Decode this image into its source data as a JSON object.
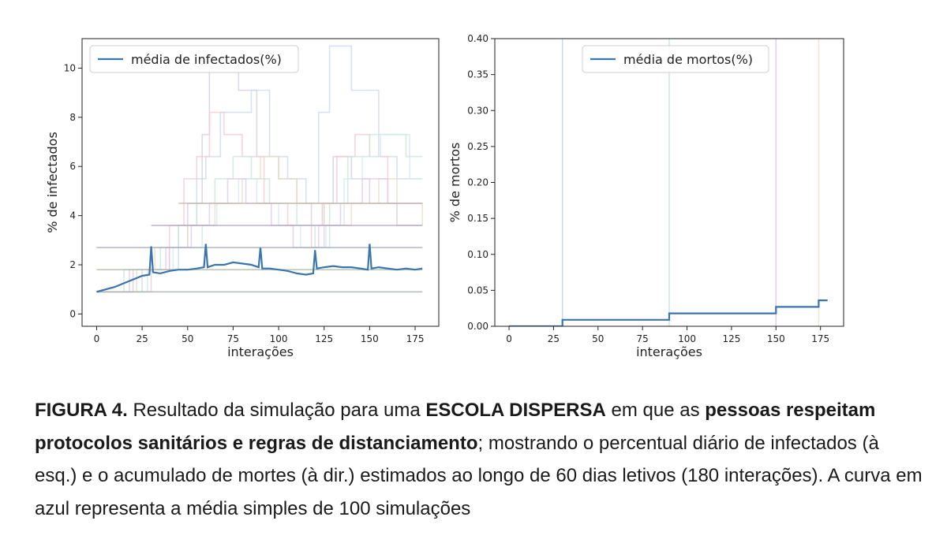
{
  "chart_data": [
    {
      "type": "line",
      "xlabel": "interações",
      "ylabel": "% de infectados",
      "xlim": [
        -8,
        188
      ],
      "ylim": [
        -0.5,
        11.2
      ],
      "xticks": [
        0,
        25,
        50,
        75,
        100,
        125,
        150,
        175
      ],
      "yticks": [
        0,
        2,
        4,
        6,
        8,
        10
      ],
      "legend": {
        "label": "média de infectados(%)",
        "position": "top-left"
      },
      "grid": false,
      "mean_series": {
        "name": "média de infectados(%)",
        "color": "#3a75b0",
        "points": [
          [
            0,
            0.9
          ],
          [
            5,
            1.0
          ],
          [
            10,
            1.1
          ],
          [
            15,
            1.25
          ],
          [
            20,
            1.4
          ],
          [
            25,
            1.55
          ],
          [
            29,
            1.6
          ],
          [
            30,
            2.75
          ],
          [
            31,
            1.7
          ],
          [
            35,
            1.65
          ],
          [
            40,
            1.75
          ],
          [
            45,
            1.8
          ],
          [
            50,
            1.8
          ],
          [
            55,
            1.85
          ],
          [
            59,
            1.9
          ],
          [
            60,
            2.85
          ],
          [
            61,
            1.9
          ],
          [
            65,
            2.0
          ],
          [
            70,
            2.0
          ],
          [
            75,
            2.1
          ],
          [
            80,
            2.05
          ],
          [
            85,
            2.0
          ],
          [
            89,
            1.9
          ],
          [
            90,
            2.7
          ],
          [
            91,
            1.85
          ],
          [
            95,
            1.85
          ],
          [
            100,
            1.8
          ],
          [
            105,
            1.75
          ],
          [
            110,
            1.65
          ],
          [
            115,
            1.6
          ],
          [
            119,
            1.65
          ],
          [
            120,
            2.6
          ],
          [
            121,
            1.85
          ],
          [
            125,
            1.9
          ],
          [
            130,
            1.95
          ],
          [
            135,
            1.9
          ],
          [
            140,
            1.9
          ],
          [
            145,
            1.85
          ],
          [
            149,
            1.8
          ],
          [
            150,
            2.85
          ],
          [
            151,
            1.85
          ],
          [
            155,
            1.9
          ],
          [
            160,
            1.85
          ],
          [
            165,
            1.8
          ],
          [
            170,
            1.85
          ],
          [
            175,
            1.8
          ],
          [
            179,
            1.85
          ]
        ]
      },
      "background_series": [
        {
          "color": "#d6c8e0",
          "points": [
            [
              0,
              0.9
            ],
            [
              20,
              1.8
            ],
            [
              40,
              2.7
            ],
            [
              50,
              4.5
            ],
            [
              58,
              7.3
            ],
            [
              62,
              10.0
            ],
            [
              70,
              10.0
            ],
            [
              78,
              9.1
            ],
            [
              88,
              6.4
            ],
            [
              100,
              5.5
            ],
            [
              110,
              4.5
            ],
            [
              118,
              3.6
            ],
            [
              124,
              4.5
            ],
            [
              130,
              6.4
            ],
            [
              140,
              5.5
            ],
            [
              150,
              4.5
            ],
            [
              165,
              3.6
            ],
            [
              179,
              3.6
            ]
          ]
        },
        {
          "color": "#c8d8ea",
          "points": [
            [
              0,
              0.9
            ],
            [
              25,
              1.8
            ],
            [
              45,
              3.6
            ],
            [
              55,
              5.5
            ],
            [
              60,
              6.4
            ],
            [
              68,
              8.2
            ],
            [
              75,
              8.2
            ],
            [
              85,
              9.1
            ],
            [
              95,
              6.4
            ],
            [
              105,
              5.5
            ],
            [
              115,
              4.5
            ],
            [
              122,
              8.2
            ],
            [
              128,
              10.9
            ],
            [
              132,
              10.9
            ],
            [
              140,
              9.1
            ],
            [
              148,
              9.1
            ],
            [
              155,
              6.4
            ],
            [
              165,
              5.5
            ],
            [
              179,
              5.5
            ]
          ]
        },
        {
          "color": "#f1c8d4",
          "points": [
            [
              0,
              0.9
            ],
            [
              30,
              1.8
            ],
            [
              40,
              3.6
            ],
            [
              48,
              5.5
            ],
            [
              55,
              6.4
            ],
            [
              62,
              8.2
            ],
            [
              70,
              7.3
            ],
            [
              80,
              6.4
            ],
            [
              92,
              4.5
            ],
            [
              105,
              3.6
            ],
            [
              118,
              2.7
            ],
            [
              125,
              4.5
            ],
            [
              132,
              6.4
            ],
            [
              142,
              7.3
            ],
            [
              150,
              6.4
            ],
            [
              160,
              4.5
            ],
            [
              179,
              4.5
            ]
          ]
        },
        {
          "color": "#c8e6d4",
          "points": [
            [
              0,
              0.9
            ],
            [
              15,
              1.8
            ],
            [
              35,
              2.7
            ],
            [
              45,
              3.6
            ],
            [
              55,
              4.5
            ],
            [
              65,
              5.5
            ],
            [
              75,
              6.4
            ],
            [
              85,
              5.5
            ],
            [
              95,
              4.5
            ],
            [
              110,
              3.6
            ],
            [
              120,
              2.7
            ],
            [
              128,
              4.5
            ],
            [
              138,
              6.4
            ],
            [
              150,
              7.3
            ],
            [
              160,
              7.3
            ],
            [
              170,
              6.4
            ],
            [
              179,
              6.4
            ]
          ]
        },
        {
          "color": "#e6dcc0",
          "points": [
            [
              0,
              0.9
            ],
            [
              22,
              1.8
            ],
            [
              32,
              2.7
            ],
            [
              50,
              3.6
            ],
            [
              65,
              4.5
            ],
            [
              72,
              4.5
            ],
            [
              80,
              5.5
            ],
            [
              90,
              6.4
            ],
            [
              100,
              5.5
            ],
            [
              110,
              4.5
            ],
            [
              125,
              3.6
            ],
            [
              140,
              4.5
            ],
            [
              155,
              5.5
            ],
            [
              165,
              4.5
            ],
            [
              179,
              3.6
            ]
          ]
        },
        {
          "color": "#d0e8f0",
          "points": [
            [
              0,
              0.9
            ],
            [
              28,
              1.8
            ],
            [
              42,
              2.7
            ],
            [
              58,
              3.6
            ],
            [
              66,
              4.5
            ],
            [
              78,
              5.5
            ],
            [
              88,
              4.5
            ],
            [
              100,
              3.6
            ],
            [
              112,
              2.7
            ],
            [
              126,
              3.6
            ],
            [
              136,
              5.5
            ],
            [
              146,
              6.4
            ],
            [
              156,
              7.3
            ],
            [
              166,
              7.3
            ],
            [
              172,
              5.5
            ],
            [
              179,
              5.5
            ]
          ]
        },
        {
          "color": "#e0c8e8",
          "points": [
            [
              0,
              0.9
            ],
            [
              18,
              1.8
            ],
            [
              38,
              2.7
            ],
            [
              52,
              3.6
            ],
            [
              62,
              4.5
            ],
            [
              72,
              5.5
            ],
            [
              82,
              4.5
            ],
            [
              96,
              3.6
            ],
            [
              108,
              2.7
            ],
            [
              122,
              3.6
            ],
            [
              134,
              4.5
            ],
            [
              146,
              5.5
            ],
            [
              160,
              4.5
            ],
            [
              179,
              4.5
            ]
          ]
        },
        {
          "color": "#a7b8a0",
          "points": [
            [
              0,
              1.8
            ],
            [
              179,
              1.8
            ]
          ]
        },
        {
          "color": "#a0a9a0",
          "points": [
            [
              0,
              0.9
            ],
            [
              179,
              0.9
            ]
          ]
        },
        {
          "color": "#9aa8b8",
          "points": [
            [
              0,
              2.7
            ],
            [
              179,
              2.7
            ]
          ]
        },
        {
          "color": "#b0a0c0",
          "points": [
            [
              30,
              3.6
            ],
            [
              179,
              3.6
            ]
          ]
        },
        {
          "color": "#c0b0a0",
          "points": [
            [
              45,
              4.5
            ],
            [
              179,
              4.5
            ]
          ]
        }
      ]
    },
    {
      "type": "line",
      "xlabel": "interações",
      "ylabel": "% de mortos",
      "xlim": [
        -8,
        188
      ],
      "ylim": [
        0,
        0.4
      ],
      "xticks": [
        0,
        25,
        50,
        75,
        100,
        125,
        150,
        175
      ],
      "yticks": [
        "0.00",
        "0.05",
        "0.10",
        "0.15",
        "0.20",
        "0.25",
        "0.30",
        "0.35",
        "0.40"
      ],
      "legend": {
        "label": "média de mortos(%)",
        "position": "top-right"
      },
      "grid": false,
      "mean_series": {
        "name": "média de mortos(%)",
        "color": "#3a75b0",
        "points": [
          [
            0,
            0.0
          ],
          [
            29,
            0.0
          ],
          [
            30,
            0.009
          ],
          [
            89,
            0.009
          ],
          [
            90,
            0.018
          ],
          [
            149,
            0.018
          ],
          [
            150,
            0.027
          ],
          [
            173,
            0.027
          ],
          [
            174,
            0.036
          ],
          [
            179,
            0.036
          ]
        ]
      },
      "background_verticals": [
        {
          "x": 30,
          "color": "#cdd8e8"
        },
        {
          "x": 90,
          "color": "#cfe6ea"
        },
        {
          "x": 150,
          "color": "#e0d0e6"
        },
        {
          "x": 174,
          "color": "#efe6d0"
        }
      ]
    }
  ],
  "caption": {
    "label": "FIGURA 4.",
    "text1": " Resultado da simulação para uma ",
    "bold1": "ESCOLA DISPERSA",
    "text2": " em que as ",
    "bold2": "pessoas respeitam protocolos sanitários e regras de distanciamento",
    "text3": "; mostrando o percentual diário de infectados (à esq.) e o acumulado de mortes (à dir.) estimados ao longo de 60 dias letivos (180 interações). A curva em azul representa a média simples de 100 simulações"
  }
}
